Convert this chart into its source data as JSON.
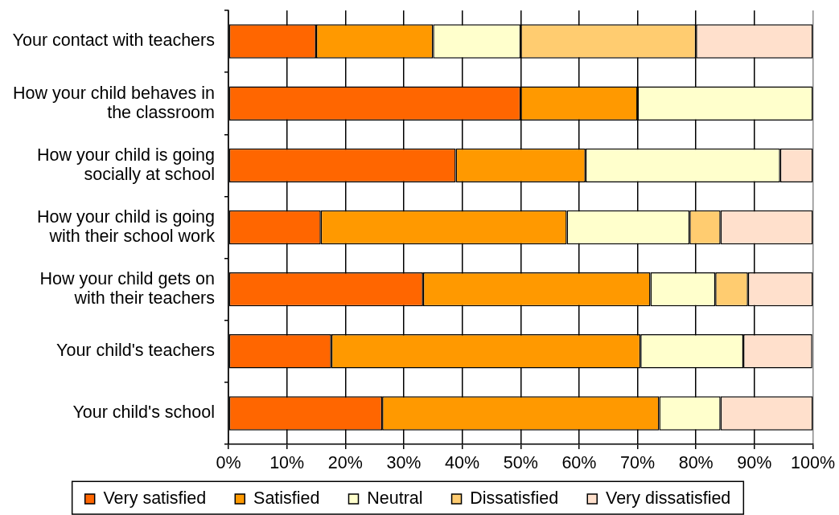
{
  "chart_data": {
    "type": "bar",
    "orientation": "horizontal",
    "stacked": true,
    "categories": [
      "Your contact with teachers",
      "How your child behaves in the classroom",
      "How your child is going socially at school",
      "How your child is going with their school work",
      "How your child gets on with their teachers",
      "Your child's teachers",
      "Your child's school"
    ],
    "series": [
      {
        "name": "Very satisfied",
        "color": "#ff6600",
        "values": [
          15,
          50,
          38.9,
          15.8,
          33.3,
          17.6,
          26.3
        ]
      },
      {
        "name": "Satisfied",
        "color": "#ff9900",
        "values": [
          20,
          20,
          22.2,
          42.1,
          38.9,
          52.9,
          47.4
        ]
      },
      {
        "name": "Neutral",
        "color": "#ffffcc",
        "values": [
          15,
          30,
          33.3,
          21.0,
          11.1,
          17.6,
          10.5
        ]
      },
      {
        "name": "Dissatisfied",
        "color": "#ffcc70",
        "values": [
          30,
          null,
          null,
          5.3,
          5.6,
          null,
          null
        ]
      },
      {
        "name": "Very dissatisfied",
        "color": "#ffe0cc",
        "values": [
          20,
          null,
          5.6,
          15.8,
          11.1,
          11.8,
          15.8
        ]
      }
    ],
    "xlim": [
      0,
      100
    ],
    "xticks": [
      {
        "value": 0,
        "label": "0%"
      },
      {
        "value": 10,
        "label": "10%"
      },
      {
        "value": 20,
        "label": "20%"
      },
      {
        "value": 30,
        "label": "30%"
      },
      {
        "value": 40,
        "label": "40%"
      },
      {
        "value": 50,
        "label": "50%"
      },
      {
        "value": 60,
        "label": "60%"
      },
      {
        "value": 70,
        "label": "70%"
      },
      {
        "value": 80,
        "label": "80%"
      },
      {
        "value": 90,
        "label": "90%"
      },
      {
        "value": 100,
        "label": "100%"
      }
    ],
    "grid": "x",
    "legend": "bottom"
  }
}
